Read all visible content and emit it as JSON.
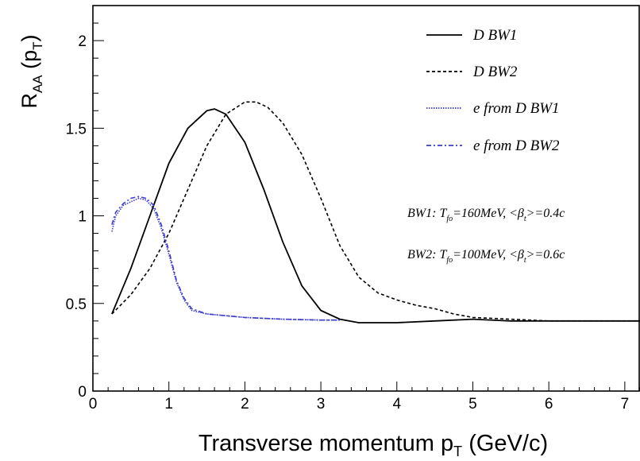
{
  "chart_data": {
    "type": "line",
    "title": "",
    "xlabel": "Transverse momentum p",
    "xlabel_sub": "T",
    "xlabel_unit": " (GeV/c)",
    "ylabel": "R",
    "ylabel_sub": "AA",
    "ylabel_rest": " (p",
    "ylabel_rest_sub": "T",
    "ylabel_close": ")",
    "xlim": [
      0,
      7.2
    ],
    "ylim": [
      0,
      2.2
    ],
    "x_ticks": [
      "0",
      "1",
      "2",
      "3",
      "4",
      "5",
      "6",
      "7"
    ],
    "y_ticks": [
      "0",
      "0.5",
      "1",
      "1.5",
      "2"
    ],
    "grid": false,
    "legend_position": "top-right",
    "series": [
      {
        "name": "D BW1",
        "color": "#000000",
        "style": "solid",
        "x": [
          0.25,
          0.5,
          0.75,
          1.0,
          1.25,
          1.5,
          1.6,
          1.75,
          2.0,
          2.25,
          2.5,
          2.75,
          3.0,
          3.25,
          3.5,
          3.75,
          4.0,
          4.5,
          5.0,
          5.5,
          6.0,
          6.5,
          7.0,
          7.2
        ],
        "y": [
          0.44,
          0.7,
          1.0,
          1.3,
          1.5,
          1.6,
          1.61,
          1.58,
          1.42,
          1.15,
          0.85,
          0.6,
          0.46,
          0.41,
          0.39,
          0.39,
          0.39,
          0.4,
          0.41,
          0.4,
          0.4,
          0.4,
          0.4,
          0.4
        ]
      },
      {
        "name": "D BW2",
        "color": "#000000",
        "style": "dashed",
        "x": [
          0.25,
          0.5,
          0.75,
          1.0,
          1.25,
          1.5,
          1.75,
          2.0,
          2.15,
          2.3,
          2.5,
          2.75,
          3.0,
          3.25,
          3.5,
          3.75,
          4.0,
          4.25,
          4.5,
          4.75,
          5.0,
          5.5,
          6.0,
          6.5,
          7.0,
          7.2
        ],
        "y": [
          0.44,
          0.55,
          0.7,
          0.9,
          1.15,
          1.4,
          1.58,
          1.65,
          1.65,
          1.62,
          1.53,
          1.35,
          1.1,
          0.83,
          0.65,
          0.56,
          0.52,
          0.49,
          0.47,
          0.44,
          0.42,
          0.41,
          0.4,
          0.4,
          0.4,
          0.4
        ]
      },
      {
        "name": "e from D BW1",
        "color": "#3b3bcf",
        "style": "dotted",
        "x": [
          0.25,
          0.3,
          0.4,
          0.5,
          0.6,
          0.7,
          0.8,
          0.9,
          1.0,
          1.1,
          1.2,
          1.3,
          1.5,
          1.75,
          2.0,
          2.5,
          3.0,
          3.25
        ],
        "y": [
          0.91,
          1.0,
          1.06,
          1.08,
          1.1,
          1.09,
          1.04,
          0.93,
          0.78,
          0.62,
          0.52,
          0.46,
          0.44,
          0.43,
          0.42,
          0.41,
          0.405,
          0.405
        ]
      },
      {
        "name": "e from D BW2",
        "color": "#3b3bcf",
        "style": "dashdot",
        "x": [
          0.25,
          0.3,
          0.4,
          0.5,
          0.6,
          0.7,
          0.8,
          0.9,
          1.0,
          1.1,
          1.2,
          1.3,
          1.5,
          1.75,
          2.0,
          2.5,
          3.0,
          3.25
        ],
        "y": [
          0.95,
          1.02,
          1.07,
          1.1,
          1.11,
          1.1,
          1.06,
          0.95,
          0.8,
          0.63,
          0.53,
          0.47,
          0.44,
          0.43,
          0.42,
          0.41,
          0.405,
          0.405
        ]
      }
    ],
    "annotations": [
      {
        "label": "BW1",
        "temp_prefix": ": T",
        "temp_sub": "fo",
        "temp_value": "=160MeV, <β",
        "beta_sub": "t",
        "beta_value": ">=0.4c"
      },
      {
        "label": "BW2",
        "temp_prefix": ": T",
        "temp_sub": "fo",
        "temp_value": "=100MeV, <β",
        "beta_sub": "t",
        "beta_value": ">=0.6c"
      }
    ]
  }
}
